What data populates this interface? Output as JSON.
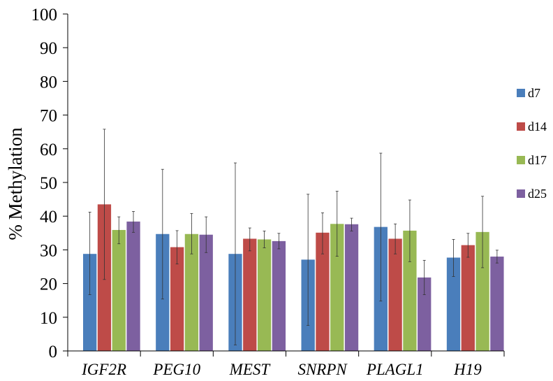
{
  "chart_data": {
    "type": "bar",
    "title": "",
    "xlabel": "",
    "ylabel": "% Methylation",
    "ylim": [
      0,
      100
    ],
    "yticks": [
      0,
      10,
      20,
      30,
      40,
      50,
      60,
      70,
      80,
      90,
      100
    ],
    "grid": false,
    "legend_position": "right",
    "categories": [
      "IGF2R",
      "PEG10",
      "MEST",
      "SNRPN",
      "PLAGL1",
      "H19"
    ],
    "series": [
      {
        "name": "d7",
        "color": "#4a7ebb",
        "values": [
          28.8,
          34.7,
          28.8,
          27.1,
          36.8,
          27.7
        ],
        "err_low": [
          16.7,
          15.4,
          1.8,
          7.6,
          14.8,
          22.1
        ],
        "err_high": [
          41.2,
          53.9,
          55.8,
          46.5,
          58.7,
          33.1
        ]
      },
      {
        "name": "d14",
        "color": "#be4b48",
        "values": [
          43.5,
          30.8,
          33.3,
          35.1,
          33.3,
          31.4
        ],
        "err_low": [
          21.2,
          25.8,
          29.7,
          28.8,
          28.8,
          27.8
        ],
        "err_high": [
          65.8,
          35.7,
          36.5,
          41.0,
          37.7,
          34.9
        ]
      },
      {
        "name": "d17",
        "color": "#98b954",
        "values": [
          35.9,
          34.7,
          33.1,
          37.7,
          35.7,
          35.3
        ],
        "err_low": [
          31.8,
          28.8,
          30.6,
          28.1,
          26.5,
          24.7
        ],
        "err_high": [
          39.8,
          40.8,
          35.6,
          47.4,
          44.8,
          45.9
        ]
      },
      {
        "name": "d25",
        "color": "#7d60a0",
        "values": [
          38.4,
          34.5,
          32.6,
          37.6,
          21.8,
          28.0
        ],
        "err_low": [
          35.2,
          29.2,
          30.3,
          35.6,
          16.7,
          26.1
        ],
        "err_high": [
          41.4,
          39.8,
          34.9,
          39.4,
          26.9,
          29.9
        ]
      }
    ]
  }
}
